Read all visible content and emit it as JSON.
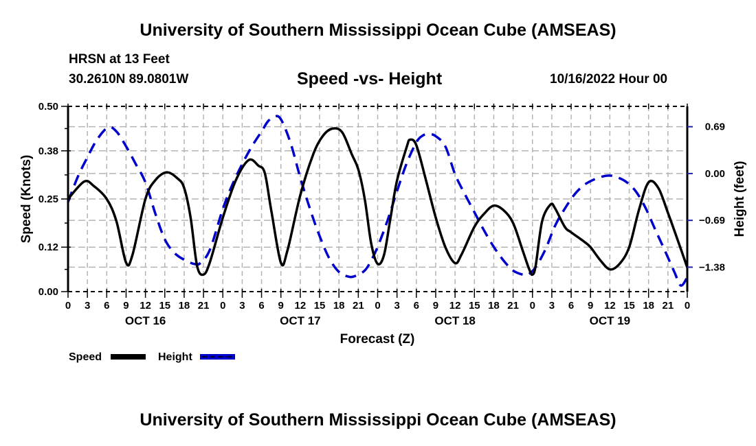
{
  "header": {
    "main_title": "University of Southern Mississippi Ocean Cube (AMSEAS)",
    "station": "HRSN at 13 Feet",
    "coordinates": "30.2610N  89.0801W",
    "chart_title": "Speed -vs- Height",
    "run_time": "10/16/2022 Hour 00"
  },
  "footer": {
    "bottom_title": "University of Southern Mississippi Ocean Cube (AMSEAS)"
  },
  "colors": {
    "speed": "#000000",
    "height": "#0000cc",
    "grid": "#b4b4b4"
  },
  "chart_data": {
    "type": "line",
    "title": "Speed -vs- Height",
    "xlabel": "Forecast (Z)",
    "ylabel": "Speed (Knots)",
    "y2label": "Height (feet)",
    "xlim": [
      0,
      96
    ],
    "ylim": [
      0,
      0.5
    ],
    "y2lim": [
      -1.74,
      0.99
    ],
    "x_tick_labels": [
      "0",
      "3",
      "6",
      "9",
      "12",
      "15",
      "18",
      "21",
      "0",
      "3",
      "6",
      "9",
      "12",
      "15",
      "18",
      "21",
      "0",
      "3",
      "6",
      "9",
      "12",
      "15",
      "18",
      "21",
      "0",
      "3",
      "6",
      "9",
      "12",
      "15",
      "18",
      "21",
      "0"
    ],
    "x_tick_hours": [
      0,
      3,
      6,
      9,
      12,
      15,
      18,
      21,
      24,
      27,
      30,
      33,
      36,
      39,
      42,
      45,
      48,
      51,
      54,
      57,
      60,
      63,
      66,
      69,
      72,
      75,
      78,
      81,
      84,
      87,
      90,
      93,
      96
    ],
    "date_labels": [
      {
        "label": "OCT 16",
        "hour": 12
      },
      {
        "label": "OCT 17",
        "hour": 36
      },
      {
        "label": "OCT 18",
        "hour": 60
      },
      {
        "label": "OCT 19",
        "hour": 84
      }
    ],
    "y_ticks": [
      0.0,
      0.12,
      0.25,
      0.38,
      0.5
    ],
    "y_tick_labels": [
      "0.00",
      "0.12",
      "0.25",
      "0.38",
      "0.50"
    ],
    "y2_ticks": [
      0.69,
      0.0,
      -0.69,
      -1.38
    ],
    "y2_tick_labels": [
      "0.69",
      "0.00",
      "−0.69",
      "−1.38"
    ],
    "grid": true,
    "legend": {
      "placement": "bottom-left",
      "entries": [
        {
          "name": "Speed",
          "style": "solid"
        },
        {
          "name": "Height",
          "style": "dashed"
        }
      ]
    },
    "series": [
      {
        "name": "Speed",
        "axis": "left",
        "unit": "Knots",
        "x": [
          0,
          2.5,
          4,
          6,
          7.5,
          9,
          10,
          12,
          13.5,
          15.3,
          17,
          18,
          19,
          20,
          21,
          22,
          24,
          26,
          28,
          29.5,
          30.5,
          31.5,
          33,
          34,
          36,
          38,
          39.5,
          41,
          42.5,
          44,
          45,
          46,
          47,
          48,
          49,
          50,
          51,
          52.5,
          53,
          54,
          55.5,
          57,
          58.5,
          60,
          61,
          63,
          64.5,
          66,
          67.5,
          69,
          70.5,
          71.5,
          72,
          72.5,
          73.5,
          74.8,
          75.5,
          77,
          78,
          80,
          81,
          82.5,
          84,
          85.5,
          87,
          88.5,
          90,
          91.5,
          93,
          94.5,
          96
        ],
        "values": [
          0.25,
          0.297,
          0.285,
          0.25,
          0.19,
          0.078,
          0.1,
          0.25,
          0.3,
          0.322,
          0.305,
          0.28,
          0.2,
          0.07,
          0.046,
          0.08,
          0.2,
          0.3,
          0.355,
          0.34,
          0.32,
          0.22,
          0.078,
          0.11,
          0.26,
          0.37,
          0.42,
          0.44,
          0.43,
          0.37,
          0.33,
          0.25,
          0.13,
          0.075,
          0.1,
          0.2,
          0.3,
          0.39,
          0.41,
          0.395,
          0.3,
          0.2,
          0.12,
          0.077,
          0.1,
          0.175,
          0.21,
          0.232,
          0.22,
          0.185,
          0.11,
          0.06,
          0.046,
          0.07,
          0.19,
          0.235,
          0.225,
          0.175,
          0.16,
          0.135,
          0.12,
          0.085,
          0.06,
          0.075,
          0.12,
          0.22,
          0.295,
          0.28,
          0.213,
          0.14,
          0.065
        ]
      },
      {
        "name": "Height",
        "axis": "right",
        "unit": "feet",
        "x": [
          0,
          1.5,
          3,
          4.5,
          6.2,
          7.5,
          9,
          10.5,
          12,
          13.5,
          15,
          16.5,
          18,
          19.5,
          20.5,
          22,
          24,
          25.5,
          27,
          28.5,
          30,
          31,
          32,
          33,
          34.5,
          36,
          37.5,
          39,
          40.5,
          42,
          43.5,
          44.5,
          46,
          47,
          48,
          49.5,
          51,
          52.5,
          54,
          55,
          56,
          57,
          58.5,
          60,
          61.5,
          63,
          64.5,
          66,
          67.5,
          69,
          70.5,
          71.3,
          72.5,
          74,
          75.5,
          77,
          78.5,
          80,
          81.5,
          83,
          84,
          85,
          86.5,
          88,
          89.5,
          91,
          92.5,
          94,
          95,
          96
        ],
        "values": [
          -0.42,
          -0.05,
          0.24,
          0.5,
          0.68,
          0.62,
          0.4,
          0.14,
          -0.13,
          -0.58,
          -0.97,
          -1.17,
          -1.27,
          -1.33,
          -1.32,
          -1.12,
          -0.52,
          -0.16,
          0.14,
          0.4,
          0.62,
          0.77,
          0.84,
          0.8,
          0.45,
          -0.06,
          -0.52,
          -0.92,
          -1.25,
          -1.45,
          -1.52,
          -1.51,
          -1.43,
          -1.28,
          -1.08,
          -0.7,
          -0.26,
          0.15,
          0.46,
          0.56,
          0.58,
          0.55,
          0.4,
          -0.01,
          -0.3,
          -0.57,
          -0.84,
          -1.08,
          -1.28,
          -1.43,
          -1.49,
          -1.49,
          -1.38,
          -1.12,
          -0.77,
          -0.52,
          -0.31,
          -0.17,
          -0.09,
          -0.04,
          -0.03,
          -0.05,
          -0.12,
          -0.26,
          -0.5,
          -0.82,
          -1.13,
          -1.45,
          -1.65,
          -1.53
        ]
      }
    ]
  }
}
